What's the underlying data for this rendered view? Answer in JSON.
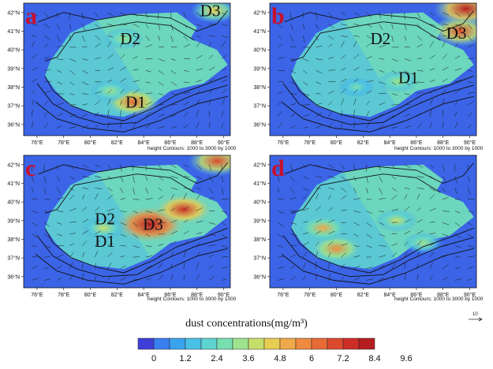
{
  "colors": {
    "colorbar": [
      "#3f3fd8",
      "#3a7ff0",
      "#3aa3ee",
      "#4bc0e6",
      "#5fd3d0",
      "#78dfb0",
      "#9de38e",
      "#c6df6a",
      "#e8cd54",
      "#f0a94a",
      "#ef8a40",
      "#e86a36",
      "#dc4a2e",
      "#cc2d26",
      "#b51c20"
    ],
    "background": "#3b64e6",
    "contour_line": "#111111"
  },
  "chart_data": {
    "type": "heatmap",
    "colorbar": {
      "title": "dust concentrations(mg/m³)",
      "tick_labels": [
        "0",
        "1.2",
        "2.4",
        "3.6",
        "4.8",
        "6",
        "7.2",
        "8.4",
        "9.6"
      ]
    },
    "reference_vector": "10",
    "panels": [
      {
        "letter": "a",
        "x_ticks": [
          "76°E",
          "78°E",
          "80°E",
          "82°E",
          "84°E",
          "86°E",
          "88°E",
          "90°E"
        ],
        "y_ticks": [
          "42°N",
          "41°N",
          "40°N",
          "39°N",
          "38°N",
          "37°N",
          "36°N"
        ],
        "contour_caption": "height Contours: 1000 to 3000 by 1000",
        "regions": [
          {
            "name": "D1",
            "lon": 83.4,
            "lat": 36.9
          },
          {
            "name": "D2",
            "lon": 83.0,
            "lat": 40.3
          },
          {
            "name": "D3",
            "lon": 89.0,
            "lat": 41.8
          }
        ],
        "hotspots": [
          {
            "lon": 83.2,
            "lat": 37.2,
            "level": 6.6
          },
          {
            "lon": 89.3,
            "lat": 42.1,
            "level": 5.0
          },
          {
            "lon": 82.5,
            "lat": 40.6,
            "level": 3.6
          },
          {
            "lon": 81.5,
            "lat": 37.8,
            "level": 3.8
          }
        ]
      },
      {
        "letter": "b",
        "x_ticks": [
          "76°E",
          "78°E",
          "80°E",
          "82°E",
          "84°E",
          "86°E",
          "88°E",
          "90°E"
        ],
        "y_ticks": [
          "42°N",
          "41°N",
          "40°N",
          "39°N",
          "38°N",
          "37°N",
          "36°N"
        ],
        "contour_caption": "height Contours: 1000 to 3000 by 1000",
        "regions": [
          {
            "name": "D1",
            "lon": 85.4,
            "lat": 38.2
          },
          {
            "name": "D2",
            "lon": 83.3,
            "lat": 40.3
          },
          {
            "name": "D3",
            "lon": 89.0,
            "lat": 40.6
          }
        ],
        "hotspots": [
          {
            "lon": 89.3,
            "lat": 41.0,
            "level": 7.2
          },
          {
            "lon": 89.7,
            "lat": 42.2,
            "level": 8.4
          },
          {
            "lon": 84.6,
            "lat": 38.3,
            "level": 3.6
          },
          {
            "lon": 81.5,
            "lat": 38.0,
            "level": 3.0
          }
        ]
      },
      {
        "letter": "c",
        "x_ticks": [
          "76°E",
          "78°E",
          "80°E",
          "82°E",
          "84°E",
          "86°E",
          "88°E",
          "90°E"
        ],
        "y_ticks": [
          "42°N",
          "41°N",
          "40°N",
          "39°N",
          "38°N",
          "37°N",
          "36°N"
        ],
        "contour_caption": "height Contours: 1000 to 3000 by 1000",
        "regions": [
          {
            "name": "D1",
            "lon": 81.1,
            "lat": 37.6
          },
          {
            "name": "D2",
            "lon": 81.1,
            "lat": 38.8
          },
          {
            "name": "D3",
            "lon": 84.7,
            "lat": 38.5
          }
        ],
        "hotspots": [
          {
            "lon": 84.5,
            "lat": 38.8,
            "level": 9.6
          },
          {
            "lon": 87.0,
            "lat": 39.6,
            "level": 7.6
          },
          {
            "lon": 89.5,
            "lat": 42.2,
            "level": 7.0
          },
          {
            "lon": 81.0,
            "lat": 38.6,
            "level": 4.2
          }
        ]
      },
      {
        "letter": "d",
        "x_ticks": [
          "76°E",
          "78°E",
          "80°E",
          "82°E",
          "84°E",
          "86°E",
          "88°E",
          "90°E"
        ],
        "y_ticks": [
          "42°N",
          "41°N",
          "40°N",
          "39°N",
          "38°N",
          "37°N",
          "36°N"
        ],
        "contour_caption": "height Contours: 1000 to 3000 by 1000",
        "regions": [],
        "hotspots": [
          {
            "lon": 80.0,
            "lat": 37.5,
            "level": 6.2
          },
          {
            "lon": 79.0,
            "lat": 38.6,
            "level": 5.2
          },
          {
            "lon": 84.5,
            "lat": 39.0,
            "level": 4.0
          },
          {
            "lon": 86.5,
            "lat": 37.8,
            "level": 3.6
          }
        ]
      }
    ]
  }
}
